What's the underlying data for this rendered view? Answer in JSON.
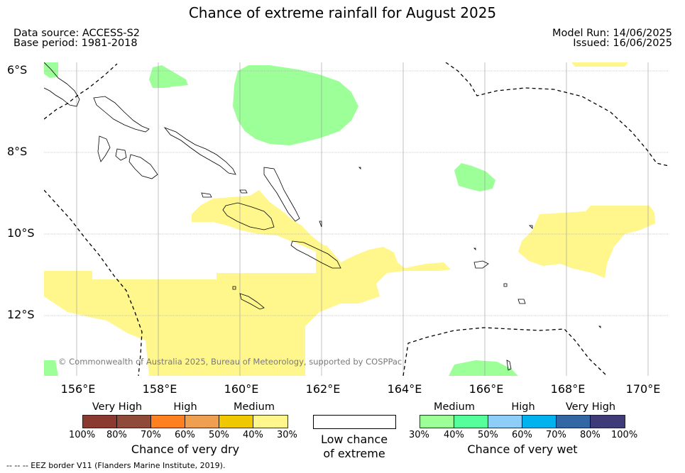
{
  "title": "Chance of extreme rainfall for August 2025",
  "data_source": "Data source: ACCESS-S2",
  "base_period": "Base period: 1981-2018",
  "model_run": "Model Run: 14/06/2025",
  "issued": "Issued: 16/06/2025",
  "lat_labels": [
    "6°S",
    "8°S",
    "10°S",
    "12°S"
  ],
  "lon_labels": [
    "156°E",
    "158°E",
    "160°E",
    "162°E",
    "164°E",
    "166°E",
    "168°E",
    "170°E"
  ],
  "copyright": "© Commonwealth of Australia 2025, Bureau of Meteorology, supported by COSPPac",
  "legend": {
    "dry": {
      "categories": [
        "Very High",
        "High",
        "Medium"
      ],
      "colors": [
        "#8b3a2f",
        "#8f4a3a",
        "#ff8020",
        "#eea050",
        "#f0c800",
        "#fff68c"
      ],
      "percents": [
        "100%",
        "80%",
        "70%",
        "60%",
        "50%",
        "40%",
        "30%"
      ],
      "title": "Chance of very dry"
    },
    "low": {
      "title_line1": "Low chance",
      "title_line2": "of extreme",
      "color": "#ffffff"
    },
    "wet": {
      "categories": [
        "Medium",
        "High",
        "Very High"
      ],
      "colors": [
        "#9cff98",
        "#55ff9c",
        "#8ecdf8",
        "#00b2ee",
        "#3366a4",
        "#3f3a78"
      ],
      "percents": [
        "30%",
        "40%",
        "50%",
        "60%",
        "70%",
        "80%",
        "100%"
      ],
      "title": "Chance of very wet"
    }
  },
  "eez_note": "--  --  -- EEZ border V11 (Flanders Marine Institute, 2019).",
  "colors": {
    "very_dry_medium": "#fff68c",
    "very_wet_medium": "#9cff98",
    "eez_line": "#000000",
    "grid": "#999999"
  }
}
